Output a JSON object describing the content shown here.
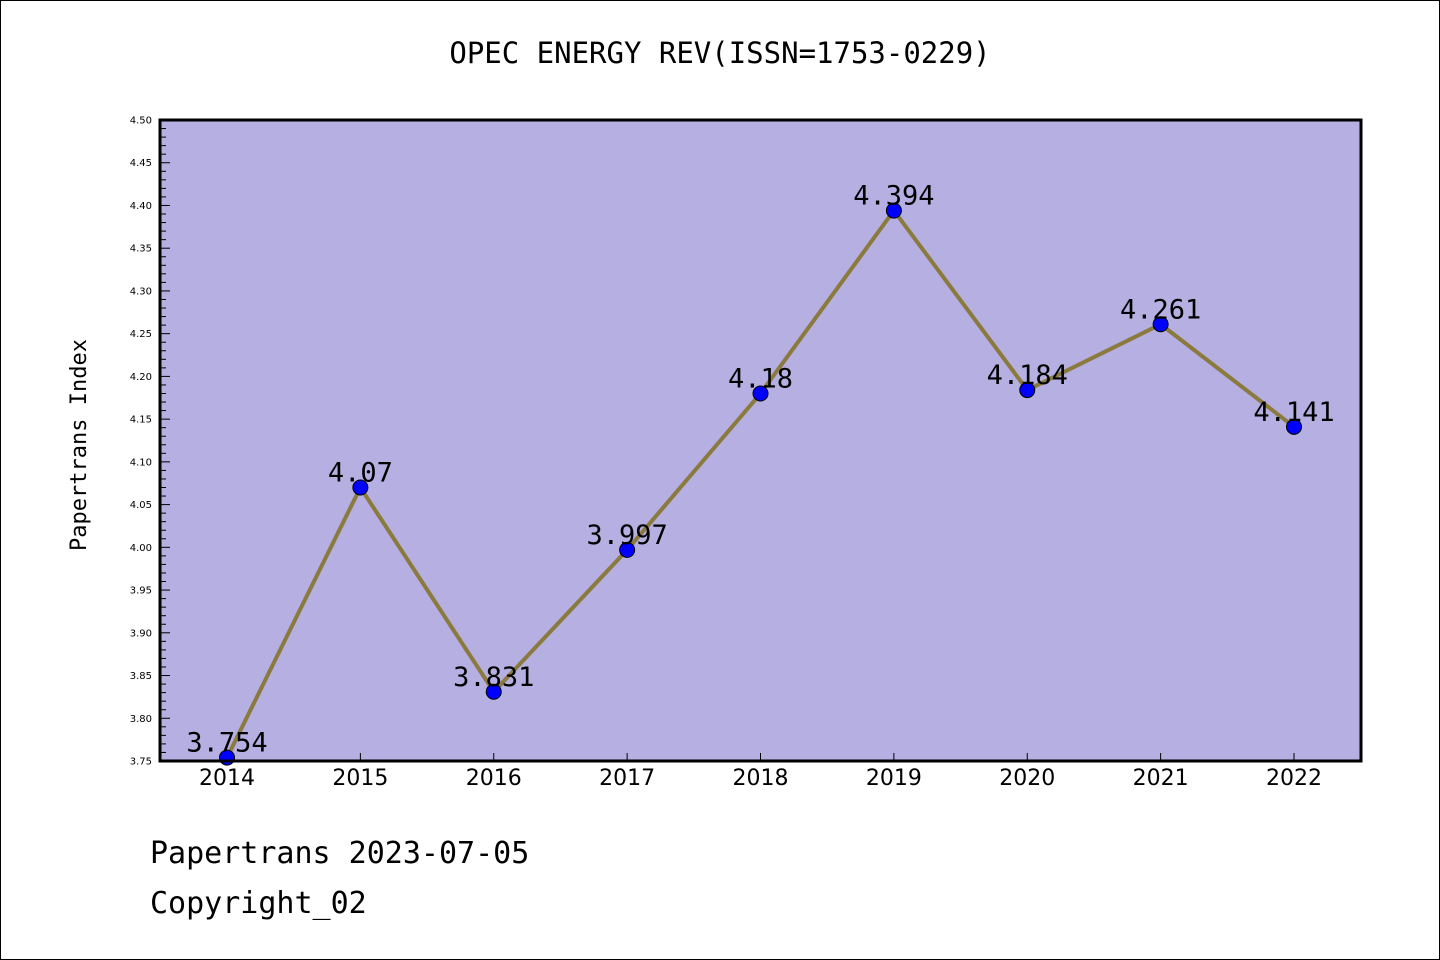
{
  "title": "OPEC ENERGY REV(ISSN=1753-0229)",
  "footer": {
    "date_line": "Papertrans 2023-07-05",
    "copyright": "Copyright_02"
  },
  "colors": {
    "plot_background": "#b5afe2",
    "line": "#8b7a3e",
    "marker": "#0000ff"
  },
  "chart_data": {
    "type": "line",
    "title": "OPEC ENERGY REV(ISSN=1753-0229)",
    "xlabel": "",
    "ylabel": "Papertrans Index",
    "categories": [
      "2014",
      "2015",
      "2016",
      "2017",
      "2018",
      "2019",
      "2020",
      "2021",
      "2022"
    ],
    "series": [
      {
        "values": [
          3.754,
          4.07,
          3.831,
          3.997,
          4.18,
          4.394,
          4.184,
          4.261,
          4.141
        ],
        "labels": [
          "3.754",
          "4.07",
          "3.831",
          "3.997",
          "4.18",
          "4.394",
          "4.184",
          "4.261",
          "4.141"
        ]
      }
    ],
    "ylim": [
      3.75,
      4.5
    ],
    "yticks": [
      "3.75",
      "3.80",
      "3.85",
      "3.90",
      "3.95",
      "4.00",
      "4.05",
      "4.10",
      "4.15",
      "4.20",
      "4.25",
      "4.30",
      "4.35",
      "4.40",
      "4.45",
      "4.50"
    ],
    "grid": false,
    "legend": "none",
    "markers": true
  }
}
